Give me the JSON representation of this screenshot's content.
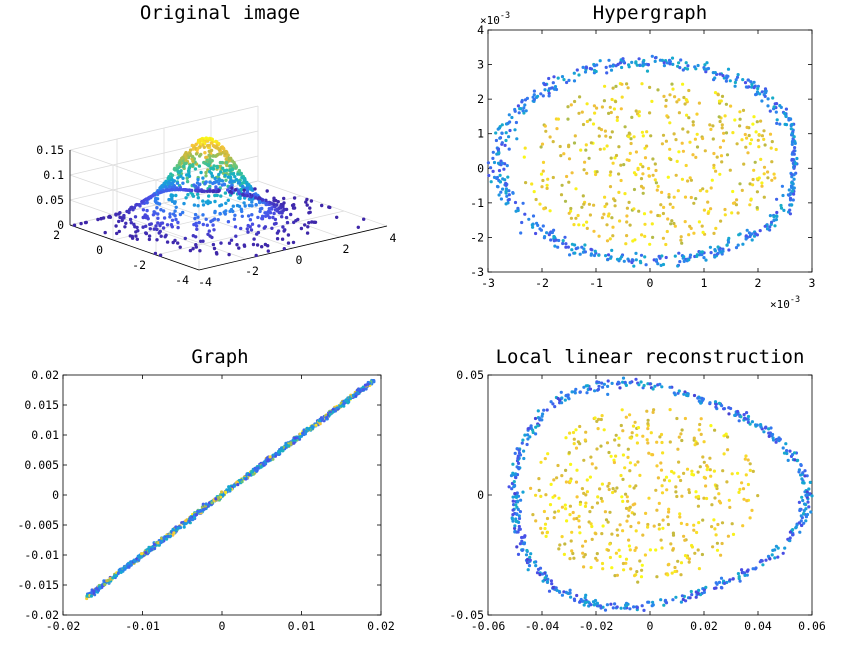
{
  "figure": {
    "colormap": [
      "#3e26a8",
      "#4a50e8",
      "#2f7ff0",
      "#14a5d5",
      "#24bcaa",
      "#6dc576",
      "#c2b93f",
      "#f6c23a",
      "#f9fb15"
    ]
  },
  "chart_data": [
    {
      "id": "original",
      "type": "scatter3d",
      "title": "Original image",
      "surface": "2D Gaussian density z = exp(-(x^2+y^2)/2)/(2*pi)",
      "xlim": [
        -4,
        4
      ],
      "ylim": [
        -4,
        2
      ],
      "zlim": [
        0,
        0.15
      ],
      "xticks": [
        "-4",
        "-2",
        "0",
        "2",
        "4"
      ],
      "yticks": [
        "-4",
        "-2",
        "0",
        "2"
      ],
      "zticks": [
        "0",
        "0.05",
        "0.1",
        "0.15"
      ],
      "n_points": 1000,
      "grid": true
    },
    {
      "id": "hypergraph",
      "type": "scatter",
      "title": "Hypergraph",
      "shape": "dense rounded ring of radius ~2.8e-3 with scattered interior points",
      "xlim": [
        -3,
        3
      ],
      "ylim": [
        -3,
        4
      ],
      "xticks": [
        "-3",
        "-2",
        "-1",
        "0",
        "1",
        "2",
        "3"
      ],
      "yticks": [
        "-3",
        "-2",
        "-1",
        "0",
        "1",
        "2",
        "3",
        "4"
      ],
      "xscale_label": "×10",
      "xscale_exp": "-3",
      "yscale_label": "×10",
      "yscale_exp": "-3",
      "n_points": 1000
    },
    {
      "id": "graph",
      "type": "scatter",
      "title": "Graph",
      "shape": "points along the line y = x from -0.017 to 0.019",
      "xlim": [
        -0.02,
        0.02
      ],
      "ylim": [
        -0.02,
        0.02
      ],
      "xticks": [
        "-0.02",
        "-0.01",
        "0",
        "0.01",
        "0.02"
      ],
      "yticks": [
        "-0.02",
        "-0.015",
        "-0.01",
        "-0.005",
        "0",
        "0.005",
        "0.01",
        "0.015",
        "0.02"
      ],
      "n_points": 1000
    },
    {
      "id": "llr",
      "type": "scatter",
      "title": "Local linear reconstruction",
      "shape": "rounded triangular ring with scattered interior points",
      "xlim": [
        -0.06,
        0.06
      ],
      "ylim": [
        -0.05,
        0.05
      ],
      "xticks": [
        "-0.06",
        "-0.04",
        "-0.02",
        "0",
        "0.02",
        "0.04",
        "0.06"
      ],
      "yticks": [
        "-0.05",
        "0",
        "0.05"
      ],
      "n_points": 1000
    }
  ]
}
